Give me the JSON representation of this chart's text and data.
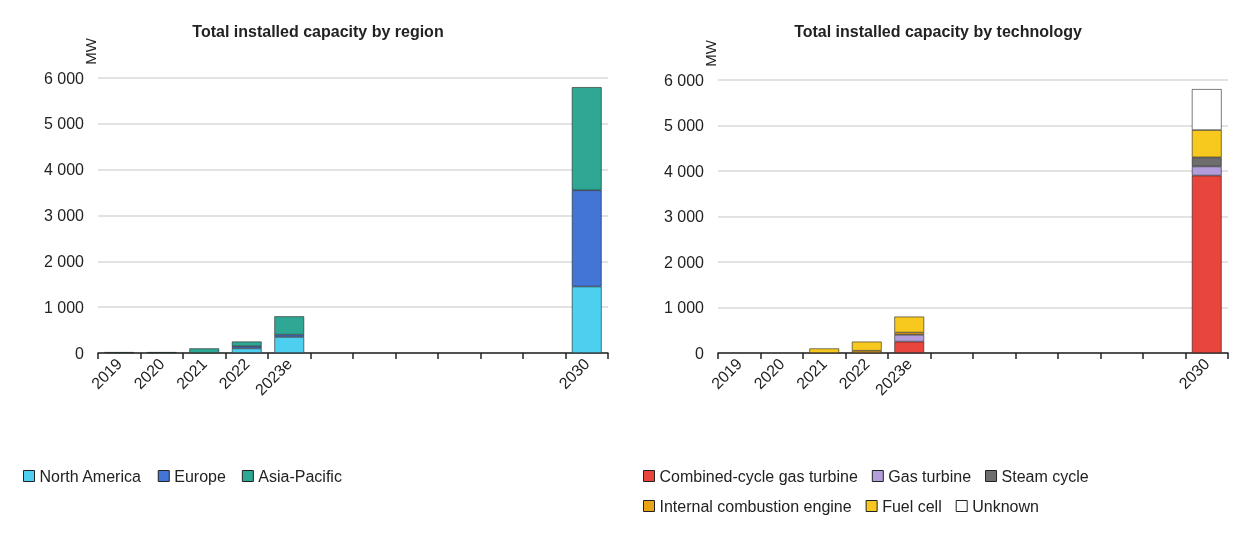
{
  "chart_data": [
    {
      "type": "bar",
      "title": "Total installed capacity by region",
      "ylabel": "MW",
      "stacked": true,
      "legend": "bottom",
      "grid": "y",
      "categories": [
        "2019",
        "2020",
        "2021",
        "2022",
        "2023e",
        null,
        null,
        null,
        null,
        null,
        null,
        "2030"
      ],
      "ylim": [
        0,
        6000
      ],
      "yticks": [
        0,
        {
          "value": 1000,
          "label": "1 000"
        },
        {
          "value": 2000,
          "label": "2 000"
        },
        {
          "value": 3000,
          "label": "3 000"
        },
        {
          "value": 4000,
          "label": "4 000"
        },
        {
          "value": 5000,
          "label": "5 000"
        },
        {
          "value": 6000,
          "label": "6 000"
        }
      ],
      "series": [
        {
          "name": "North America",
          "color": "#4dcff0",
          "values": [
            null,
            null,
            null,
            100,
            350,
            null,
            null,
            null,
            null,
            null,
            null,
            1450
          ]
        },
        {
          "name": "Europe",
          "color": "#4275d6",
          "values": [
            null,
            null,
            null,
            50,
            50,
            null,
            null,
            null,
            null,
            null,
            null,
            2100
          ]
        },
        {
          "name": "Asia-Pacific",
          "color": "#2ea894",
          "values": [
            20,
            20,
            100,
            100,
            400,
            null,
            null,
            null,
            null,
            null,
            null,
            2250
          ]
        }
      ]
    },
    {
      "type": "bar",
      "title": "Total installed capacity by technology",
      "ylabel": "MW",
      "stacked": true,
      "legend": "bottom",
      "grid": "y",
      "categories": [
        "2019",
        "2020",
        "2021",
        "2022",
        "2023e",
        null,
        null,
        null,
        null,
        null,
        null,
        "2030"
      ],
      "ylim": [
        0,
        6000
      ],
      "yticks": [
        0,
        {
          "value": 1000,
          "label": "1 000"
        },
        {
          "value": 2000,
          "label": "2 000"
        },
        {
          "value": 3000,
          "label": "3 000"
        },
        {
          "value": 4000,
          "label": "4 000"
        },
        {
          "value": 5000,
          "label": "5 000"
        },
        {
          "value": 6000,
          "label": "6 000"
        }
      ],
      "series": [
        {
          "name": "Combined-cycle gas turbine",
          "color": "#e8453c",
          "values": [
            null,
            null,
            null,
            null,
            250,
            null,
            null,
            null,
            null,
            null,
            null,
            3900
          ]
        },
        {
          "name": "Gas turbine",
          "color": "#b39ddb",
          "values": [
            null,
            null,
            null,
            null,
            150,
            null,
            null,
            null,
            null,
            null,
            null,
            200
          ]
        },
        {
          "name": "Steam cycle",
          "color": "#6e6e6e",
          "values": [
            null,
            null,
            null,
            null,
            null,
            null,
            null,
            null,
            null,
            null,
            null,
            200
          ]
        },
        {
          "name": "Internal combustion engine",
          "color": "#e8a317",
          "values": [
            null,
            null,
            null,
            50,
            50,
            null,
            null,
            null,
            null,
            null,
            null,
            null
          ]
        },
        {
          "name": "Fuel cell",
          "color": "#f7c81e",
          "values": [
            null,
            null,
            100,
            200,
            350,
            null,
            null,
            null,
            null,
            null,
            null,
            600
          ]
        },
        {
          "name": "Unknown",
          "color": "#ffffff",
          "values": [
            null,
            null,
            null,
            null,
            null,
            null,
            null,
            null,
            null,
            null,
            null,
            900
          ]
        }
      ]
    }
  ]
}
